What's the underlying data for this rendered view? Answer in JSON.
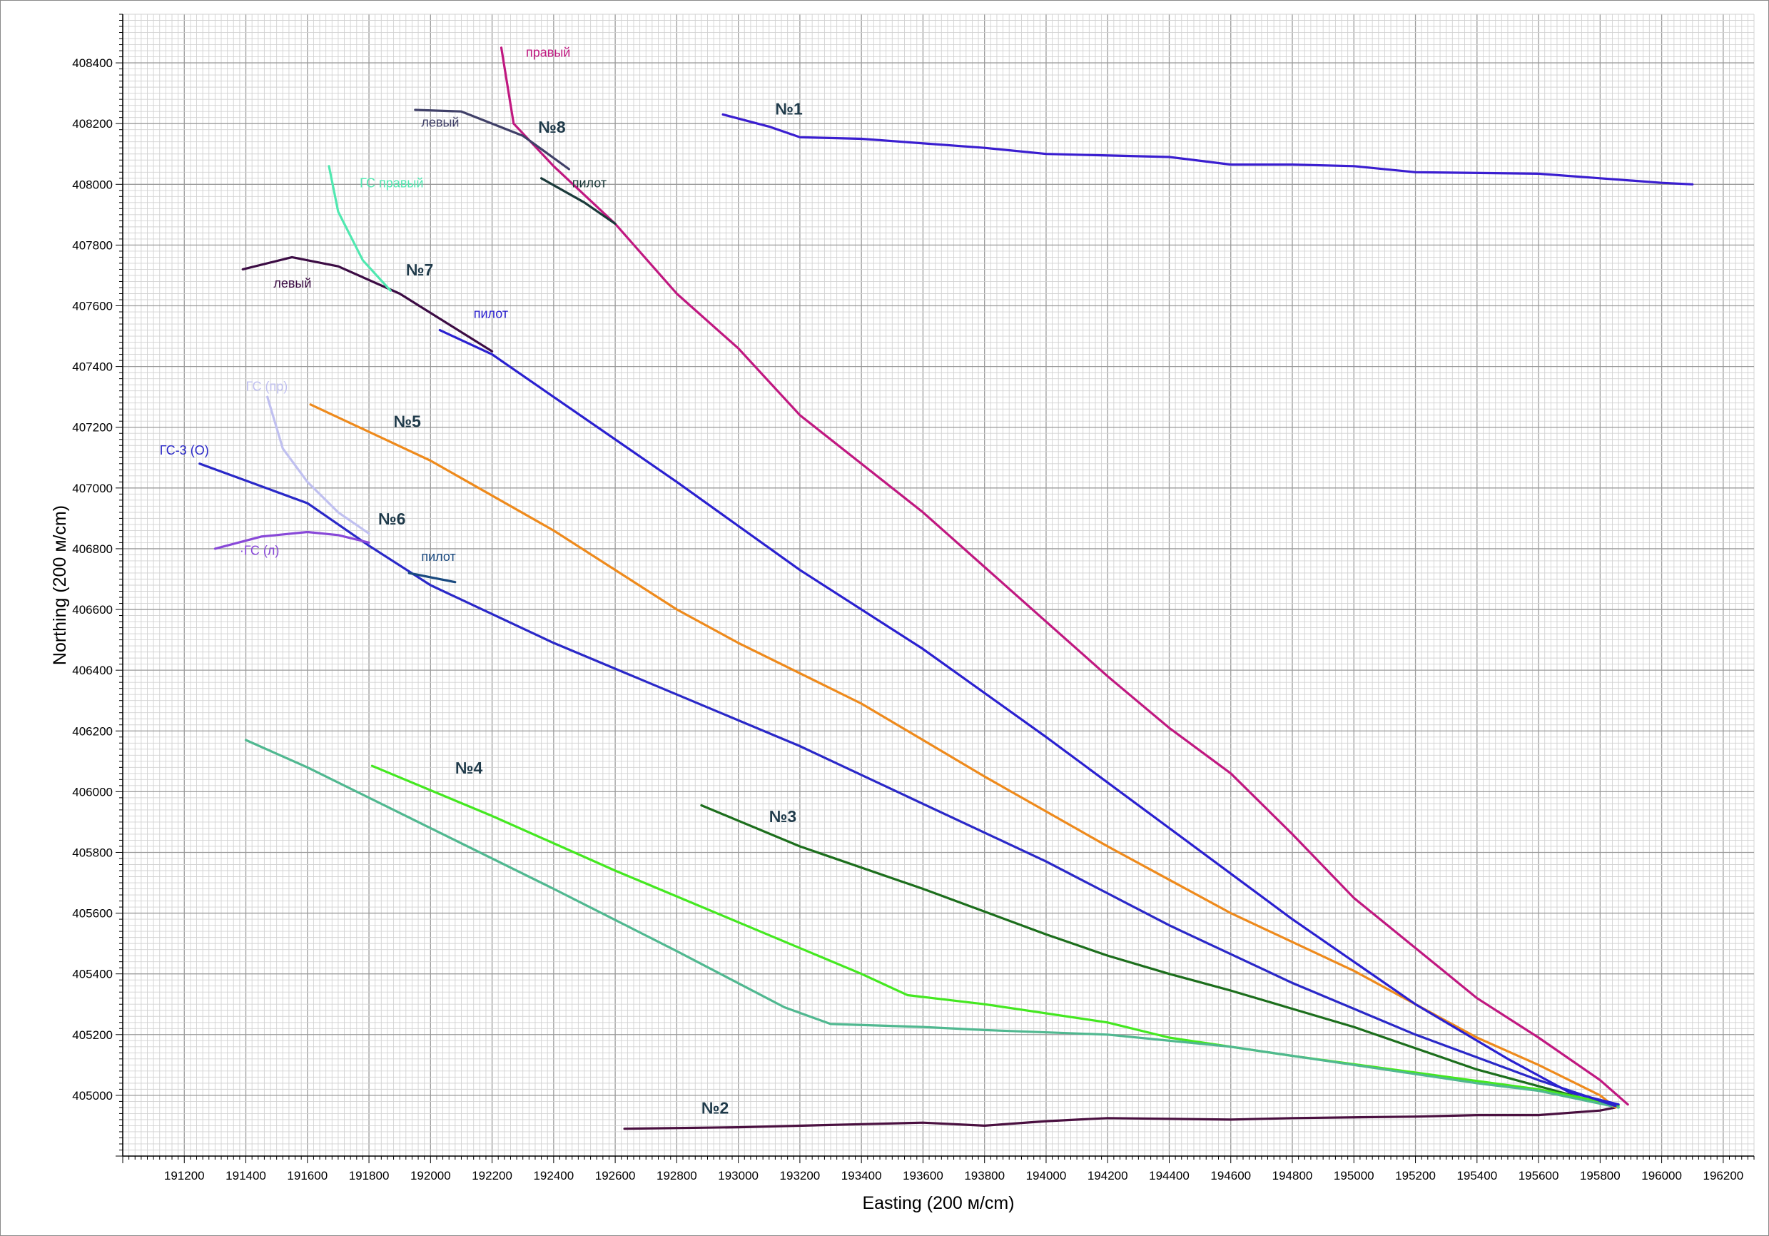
{
  "chart_data": {
    "type": "line",
    "xlabel": "Easting (200 м/cm)",
    "ylabel": "Northing (200 м/cm)",
    "xlim": [
      191000,
      196300
    ],
    "ylim": [
      404800,
      408560
    ],
    "x_ticks": [
      191200,
      191400,
      191600,
      191800,
      192000,
      192200,
      192400,
      192600,
      192800,
      193000,
      193200,
      193400,
      193600,
      193800,
      194000,
      194200,
      194400,
      194600,
      194800,
      195000,
      195200,
      195400,
      195600,
      195800,
      196000,
      196200
    ],
    "y_ticks": [
      405000,
      405200,
      405400,
      405600,
      405800,
      406000,
      406200,
      406400,
      406600,
      406800,
      407000,
      407200,
      407400,
      407600,
      407800,
      408000,
      408200,
      408400
    ],
    "x_tick_labels": [
      "191200",
      "191400",
      "191600",
      "191800",
      "192000",
      "192200",
      "192400",
      "192600",
      "192800",
      "193000",
      "193200",
      "193400",
      "193600",
      "193800",
      "194000",
      "194200",
      "194400",
      "194600",
      "194800",
      "195000",
      "195200",
      "195400",
      "195600",
      "195800",
      "196000",
      "196200"
    ],
    "y_tick_labels": [
      "405000",
      "405200",
      "405400",
      "405600",
      "405800",
      "406000",
      "406200",
      "406400",
      "406600",
      "406800",
      "407000",
      "407200",
      "407400",
      "407600",
      "407800",
      "408000",
      "408200",
      "408400"
    ],
    "grid": true,
    "series": [
      {
        "color": "#3a1ed0",
        "points": [
          [
            192950,
            408230
          ],
          [
            193100,
            408190
          ],
          [
            193200,
            408155
          ],
          [
            193400,
            408150
          ],
          [
            193800,
            408120
          ],
          [
            194000,
            408100
          ],
          [
            194400,
            408090
          ],
          [
            194600,
            408065
          ],
          [
            194800,
            408065
          ],
          [
            195000,
            408060
          ],
          [
            195200,
            408040
          ],
          [
            195600,
            408035
          ],
          [
            195800,
            408020
          ],
          [
            196000,
            408005
          ],
          [
            196100,
            408000
          ]
        ]
      },
      {
        "color": "#4a1040",
        "points": [
          [
            192630,
            404890
          ],
          [
            193000,
            404895
          ],
          [
            193400,
            404905
          ],
          [
            193600,
            404910
          ],
          [
            193800,
            404900
          ],
          [
            194000,
            404915
          ],
          [
            194200,
            404925
          ],
          [
            194600,
            404920
          ],
          [
            194800,
            404925
          ],
          [
            195200,
            404930
          ],
          [
            195400,
            404935
          ],
          [
            195600,
            404935
          ],
          [
            195800,
            404950
          ],
          [
            195850,
            404960
          ]
        ]
      },
      {
        "color": "#1c6e1c",
        "points": [
          [
            192880,
            405955
          ],
          [
            193200,
            405820
          ],
          [
            193600,
            405680
          ],
          [
            193800,
            405605
          ],
          [
            194000,
            405530
          ],
          [
            194200,
            405460
          ],
          [
            194400,
            405400
          ],
          [
            194600,
            405345
          ],
          [
            194800,
            405285
          ],
          [
            195000,
            405225
          ],
          [
            195200,
            405155
          ],
          [
            195400,
            405085
          ],
          [
            195600,
            405030
          ],
          [
            195800,
            404975
          ],
          [
            195860,
            404960
          ]
        ]
      },
      {
        "color": "#44e820",
        "points": [
          [
            191810,
            406085
          ],
          [
            192200,
            405920
          ],
          [
            192600,
            405740
          ],
          [
            193000,
            405570
          ],
          [
            193400,
            405400
          ],
          [
            193550,
            405330
          ],
          [
            193800,
            405300
          ],
          [
            194200,
            405240
          ],
          [
            194400,
            405190
          ],
          [
            194800,
            405130
          ],
          [
            195200,
            405075
          ],
          [
            195600,
            405020
          ],
          [
            195800,
            404980
          ],
          [
            195860,
            404965
          ]
        ]
      },
      {
        "color": "#50b890",
        "points": [
          [
            191400,
            406170
          ],
          [
            191600,
            406080
          ],
          [
            192000,
            405880
          ],
          [
            192400,
            405680
          ],
          [
            192800,
            405475
          ],
          [
            193150,
            405290
          ],
          [
            193300,
            405235
          ],
          [
            193600,
            405225
          ],
          [
            193800,
            405215
          ],
          [
            194200,
            405200
          ],
          [
            194600,
            405160
          ],
          [
            195000,
            405100
          ],
          [
            195400,
            405040
          ],
          [
            195600,
            405015
          ],
          [
            195860,
            404960
          ]
        ]
      },
      {
        "color": "#ee8a1c",
        "points": [
          [
            191610,
            407275
          ],
          [
            192000,
            407090
          ],
          [
            192400,
            406860
          ],
          [
            192800,
            406600
          ],
          [
            193000,
            406490
          ],
          [
            193400,
            406290
          ],
          [
            193800,
            406050
          ],
          [
            194200,
            405820
          ],
          [
            194600,
            405600
          ],
          [
            195000,
            405410
          ],
          [
            195200,
            405300
          ],
          [
            195400,
            405190
          ],
          [
            195600,
            405100
          ],
          [
            195800,
            405000
          ],
          [
            195850,
            404960
          ]
        ]
      },
      {
        "color": "#2a28c8",
        "points": [
          [
            191250,
            407080
          ],
          [
            191600,
            406950
          ],
          [
            191800,
            406810
          ],
          [
            192000,
            406680
          ],
          [
            192400,
            406490
          ],
          [
            192800,
            406320
          ],
          [
            193200,
            406150
          ],
          [
            193600,
            405960
          ],
          [
            194000,
            405770
          ],
          [
            194400,
            405560
          ],
          [
            194800,
            405370
          ],
          [
            195200,
            405200
          ],
          [
            195600,
            405050
          ],
          [
            195850,
            404965
          ]
        ]
      },
      {
        "color": "#c0c0f0",
        "points": [
          [
            191470,
            407300
          ],
          [
            191520,
            407130
          ],
          [
            191600,
            407020
          ],
          [
            191700,
            406920
          ],
          [
            191800,
            406850
          ]
        ]
      },
      {
        "color": "#8848d8",
        "points": [
          [
            191300,
            406800
          ],
          [
            191450,
            406840
          ],
          [
            191600,
            406855
          ],
          [
            191700,
            406845
          ],
          [
            191800,
            406820
          ]
        ]
      },
      {
        "color": "#1a4a80",
        "points": [
          [
            191930,
            406720
          ],
          [
            192080,
            406690
          ]
        ]
      },
      {
        "color": "#2a20d0",
        "points": [
          [
            192030,
            407520
          ],
          [
            192200,
            407440
          ],
          [
            192400,
            407300
          ],
          [
            192800,
            407020
          ],
          [
            193200,
            406730
          ],
          [
            193600,
            406470
          ],
          [
            194000,
            406180
          ],
          [
            194400,
            405880
          ],
          [
            194800,
            405580
          ],
          [
            195200,
            405300
          ],
          [
            195500,
            405120
          ],
          [
            195700,
            405010
          ],
          [
            195860,
            404970
          ]
        ]
      },
      {
        "color": "#3c0c44",
        "points": [
          [
            191390,
            407720
          ],
          [
            191550,
            407760
          ],
          [
            191700,
            407730
          ],
          [
            191900,
            407640
          ],
          [
            192200,
            407450
          ]
        ]
      },
      {
        "color": "#50e8b0",
        "points": [
          [
            191670,
            408060
          ],
          [
            191700,
            407910
          ],
          [
            191780,
            407750
          ],
          [
            191870,
            407650
          ]
        ]
      },
      {
        "color": "#c01880",
        "points": [
          [
            192230,
            408450
          ],
          [
            192270,
            408200
          ],
          [
            192400,
            408060
          ],
          [
            192600,
            407870
          ],
          [
            192800,
            407640
          ],
          [
            193000,
            407460
          ],
          [
            193200,
            407240
          ],
          [
            193600,
            406920
          ],
          [
            193800,
            406740
          ],
          [
            194200,
            406380
          ],
          [
            194400,
            406210
          ],
          [
            194600,
            406060
          ],
          [
            194800,
            405860
          ],
          [
            195000,
            405650
          ],
          [
            195400,
            405320
          ],
          [
            195600,
            405190
          ],
          [
            195800,
            405050
          ],
          [
            195890,
            404970
          ]
        ]
      },
      {
        "color": "#404068",
        "points": [
          [
            191950,
            408245
          ],
          [
            192100,
            408240
          ],
          [
            192300,
            408160
          ],
          [
            192450,
            408050
          ]
        ]
      },
      {
        "color": "#1a3a3a",
        "points": [
          [
            192360,
            408020
          ],
          [
            192500,
            407940
          ],
          [
            192600,
            407870
          ]
        ]
      }
    ],
    "annotations": [
      {
        "text": "№1",
        "x": 193120,
        "y": 408230,
        "color": "#1f3a4a",
        "kind": "well"
      },
      {
        "text": "№2",
        "x": 192880,
        "y": 404940,
        "color": "#1f3a4a",
        "kind": "well"
      },
      {
        "text": "№3",
        "x": 193100,
        "y": 405900,
        "color": "#1f3a4a",
        "kind": "well"
      },
      {
        "text": "№4",
        "x": 192080,
        "y": 406060,
        "color": "#1f3a4a",
        "kind": "well"
      },
      {
        "text": "№5",
        "x": 191880,
        "y": 407200,
        "color": "#1f3a4a",
        "kind": "well"
      },
      {
        "text": "№6",
        "x": 191830,
        "y": 406880,
        "color": "#1f3a4a",
        "kind": "well"
      },
      {
        "text": "№7",
        "x": 191920,
        "y": 407700,
        "color": "#1f3a4a",
        "kind": "well"
      },
      {
        "text": "№8",
        "x": 192350,
        "y": 408170,
        "color": "#1f3a4a",
        "kind": "well"
      },
      {
        "text": "правый",
        "x": 192310,
        "y": 408420,
        "color": "#c01880",
        "kind": "branch"
      },
      {
        "text": "левый",
        "x": 191970,
        "y": 408190,
        "color": "#404068",
        "kind": "branch"
      },
      {
        "text": "пилот",
        "x": 192460,
        "y": 407990,
        "color": "#1a3a3a",
        "kind": "branch"
      },
      {
        "text": "ГС правый",
        "x": 191770,
        "y": 407990,
        "color": "#50e8b0",
        "kind": "branch"
      },
      {
        "text": "левый",
        "x": 191490,
        "y": 407660,
        "color": "#3c0c44",
        "kind": "branch"
      },
      {
        "text": "пилот",
        "x": 192140,
        "y": 407560,
        "color": "#2a20d0",
        "kind": "branch"
      },
      {
        "text": "ГС (пр)",
        "x": 191400,
        "y": 407320,
        "color": "#c0c0f0",
        "kind": "branch"
      },
      {
        "text": "ГС-3 (О)",
        "x": 191120,
        "y": 407110,
        "color": "#2a28c8",
        "kind": "branch"
      },
      {
        "text": "·ГС (л)",
        "x": 191380,
        "y": 406780,
        "color": "#8848d8",
        "kind": "branch"
      },
      {
        "text": "пилот",
        "x": 191970,
        "y": 406760,
        "color": "#1a4a80",
        "kind": "branch"
      }
    ]
  }
}
